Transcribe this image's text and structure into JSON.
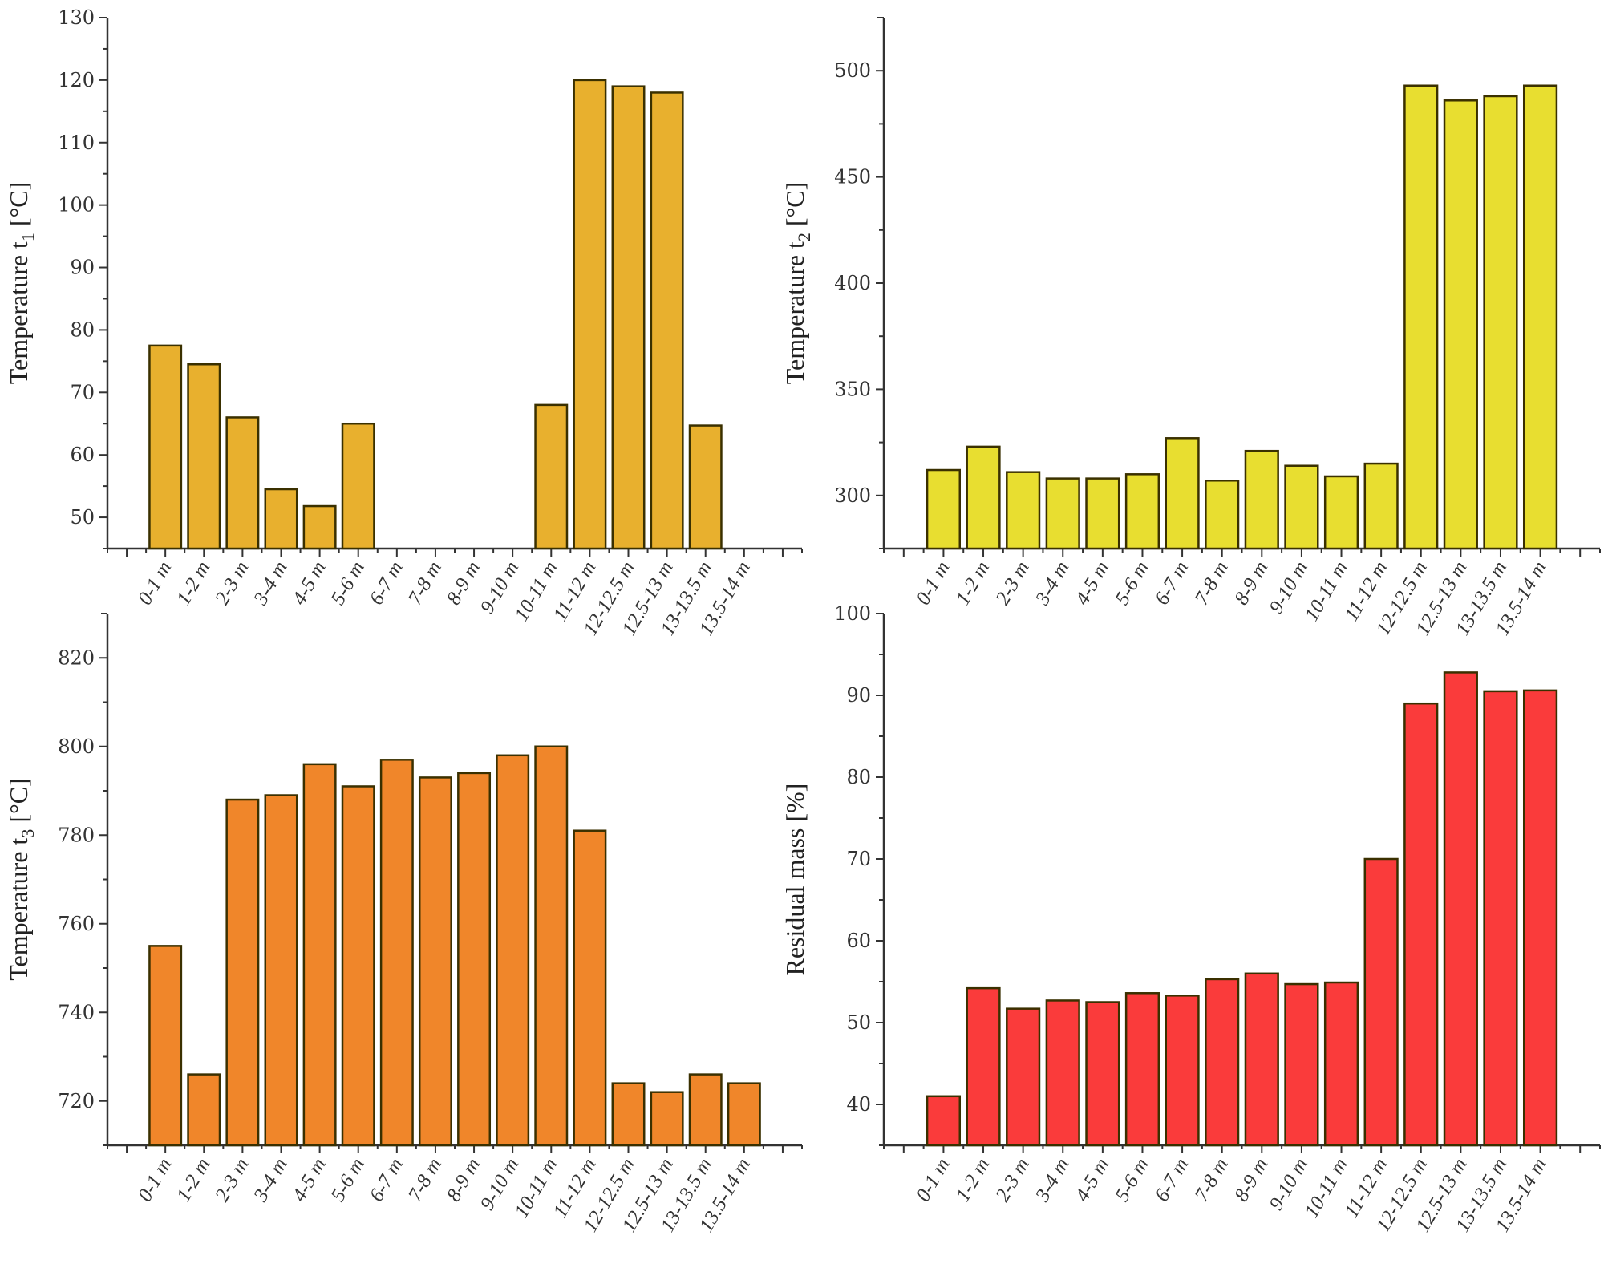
{
  "chart_data": [
    {
      "id": "t1",
      "type": "bar",
      "title": "",
      "xlabel": "",
      "ylabel": "Temperature t1 [°C]",
      "ylabel_main": "Temperature t",
      "ylabel_sub": "1",
      "ylabel_unit": " [°C]",
      "color": "#E8B02E",
      "ylim": [
        45,
        130
      ],
      "yticks": [
        50,
        60,
        70,
        80,
        90,
        100,
        110,
        120,
        130
      ],
      "categories": [
        "0-1 m",
        "1-2 m",
        "2-3 m",
        "3-4 m",
        "4-5 m",
        "5-6 m",
        "6-7 m",
        "7-8 m",
        "8-9 m",
        "9-10 m",
        "10-11 m",
        "11-12 m",
        "12-12.5 m",
        "12.5-13 m",
        "13-13.5 m",
        "13.5-14 m"
      ],
      "values": [
        77.5,
        74.5,
        66.0,
        54.5,
        51.8,
        65.0,
        null,
        null,
        null,
        null,
        68.0,
        120.0,
        119.0,
        118.0,
        64.7,
        null
      ]
    },
    {
      "id": "t2",
      "type": "bar",
      "title": "",
      "xlabel": "",
      "ylabel": "Temperature t2 [°C]",
      "ylabel_main": "Temperature t",
      "ylabel_sub": "2",
      "ylabel_unit": " [°C]",
      "color": "#E8DE30",
      "ylim": [
        275,
        525
      ],
      "yticks": [
        300,
        350,
        400,
        450,
        500
      ],
      "categories": [
        "0-1 m",
        "1-2 m",
        "2-3 m",
        "3-4 m",
        "4-5 m",
        "5-6 m",
        "6-7 m",
        "7-8 m",
        "8-9 m",
        "9-10 m",
        "10-11 m",
        "11-12 m",
        "12-12.5 m",
        "12.5-13 m",
        "13-13.5 m",
        "13.5-14 m"
      ],
      "values": [
        312,
        323,
        311,
        308,
        308,
        310,
        327,
        307,
        321,
        314,
        309,
        315,
        493,
        486,
        488,
        493
      ]
    },
    {
      "id": "t3",
      "type": "bar",
      "title": "",
      "xlabel": "",
      "ylabel": "Temperature t3 [°C]",
      "ylabel_main": "Temperature t",
      "ylabel_sub": "3",
      "ylabel_unit": " [°C]",
      "color": "#F0862A",
      "ylim": [
        710,
        830
      ],
      "yticks": [
        720,
        740,
        760,
        780,
        800,
        820
      ],
      "categories": [
        "0-1 m",
        "1-2 m",
        "2-3 m",
        "3-4 m",
        "4-5 m",
        "5-6 m",
        "6-7 m",
        "7-8 m",
        "8-9 m",
        "9-10 m",
        "10-11 m",
        "11-12 m",
        "12-12.5 m",
        "12.5-13 m",
        "13-13.5 m",
        "13.5-14 m"
      ],
      "values": [
        755,
        726,
        788,
        789,
        796,
        791,
        797,
        793,
        794,
        798,
        800,
        781,
        724,
        722,
        726,
        724
      ]
    },
    {
      "id": "rm",
      "type": "bar",
      "title": "",
      "xlabel": "",
      "ylabel": "Residual mass [%]",
      "ylabel_main": "Residual mass [%]",
      "ylabel_sub": "",
      "ylabel_unit": "",
      "color": "#FA3B3B",
      "ylim": [
        35,
        100
      ],
      "yticks": [
        40,
        50,
        60,
        70,
        80,
        90,
        100
      ],
      "categories": [
        "0-1 m",
        "1-2 m",
        "2-3 m",
        "3-4 m",
        "4-5 m",
        "5-6 m",
        "6-7 m",
        "7-8 m",
        "8-9 m",
        "9-10 m",
        "10-11 m",
        "11-12 m",
        "12-12.5 m",
        "12.5-13 m",
        "13-13.5 m",
        "13.5-14 m"
      ],
      "values": [
        41,
        54.2,
        51.7,
        52.7,
        52.5,
        53.6,
        53.3,
        55.3,
        56,
        54.7,
        54.9,
        70,
        89,
        92.8,
        90.5,
        90.6
      ]
    }
  ]
}
